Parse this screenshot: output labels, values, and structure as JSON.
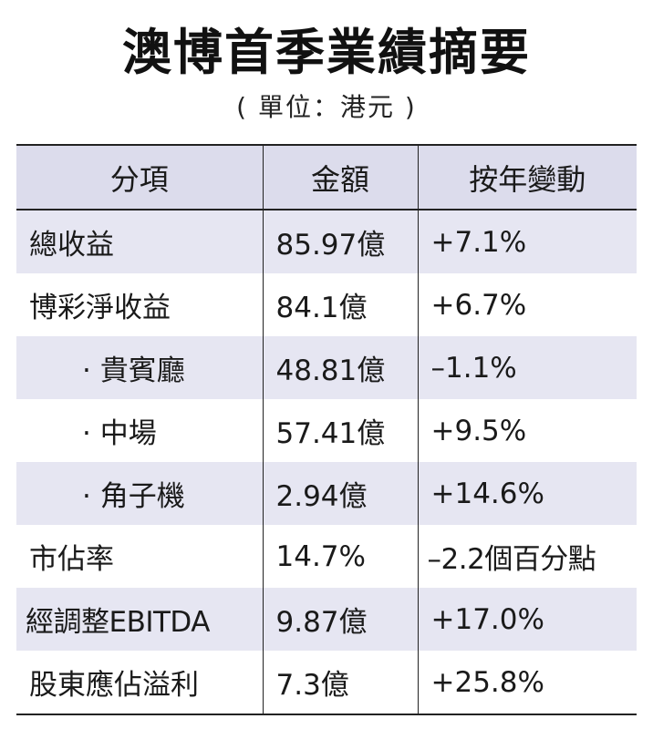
{
  "title": "澳博首季業績摘要",
  "subtitle": "( 單位：港元 )",
  "table": {
    "headers": [
      "分項",
      "金額",
      "按年變動"
    ],
    "rows": [
      {
        "item": "總收益",
        "amount": "85.97億",
        "change": "+7.1%"
      },
      {
        "item": "博彩淨收益",
        "amount": "84.1億",
        "change": "+6.7%"
      },
      {
        "item": "· 貴賓廳",
        "amount": "48.81億",
        "change": "–1.1%"
      },
      {
        "item": "· 中場",
        "amount": "57.41億",
        "change": "+9.5%"
      },
      {
        "item": "· 角子機",
        "amount": "2.94億",
        "change": "+14.6%"
      },
      {
        "item": "市佔率",
        "amount": "14.7%",
        "change": "–2.2個百分點"
      },
      {
        "item": "經調整EBITDA",
        "amount": "9.87億",
        "change": "+17.0%"
      },
      {
        "item": "股東應佔溢利",
        "amount": "7.3億",
        "change": "+25.8%"
      }
    ]
  },
  "colors": {
    "shade": "#e6e6f2",
    "header": "#dcdcec",
    "border": "#222222"
  }
}
